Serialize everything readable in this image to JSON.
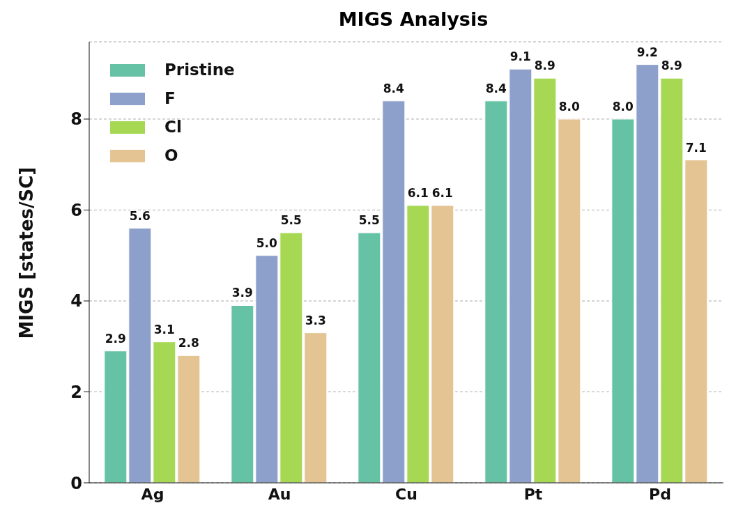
{
  "chart_data": {
    "type": "bar",
    "title": "MIGS Analysis",
    "ylabel": "MIGS [states/SC]",
    "categories": [
      "Ag",
      "Au",
      "Cu",
      "Pt",
      "Pd"
    ],
    "series": [
      {
        "name": "Pristine",
        "color": "#66c2a5",
        "values": [
          2.9,
          3.9,
          5.5,
          8.4,
          8.0
        ],
        "value_labels": [
          "2.9",
          "3.9",
          "5.5",
          "8.4",
          "8.0"
        ]
      },
      {
        "name": "F",
        "color": "#8da0cb",
        "values": [
          5.6,
          5.0,
          8.4,
          9.1,
          9.2
        ],
        "value_labels": [
          "5.6",
          "5.0",
          "8.4",
          "9.1",
          "9.2"
        ]
      },
      {
        "name": "Cl",
        "color": "#a6d854",
        "values": [
          3.1,
          5.5,
          6.1,
          8.9,
          8.9
        ],
        "value_labels": [
          "3.1",
          "5.5",
          "6.1",
          "8.9",
          "8.9"
        ]
      },
      {
        "name": "O",
        "color": "#e5c494",
        "values": [
          2.8,
          3.3,
          6.1,
          8.0,
          7.1
        ],
        "value_labels": [
          "2.8",
          "3.3",
          "6.1",
          "8.0",
          "7.1"
        ]
      }
    ],
    "ylim": [
      0,
      9.7
    ],
    "yticks": [
      0,
      2,
      4,
      6,
      8
    ],
    "grid": "y",
    "legend": "top left"
  }
}
